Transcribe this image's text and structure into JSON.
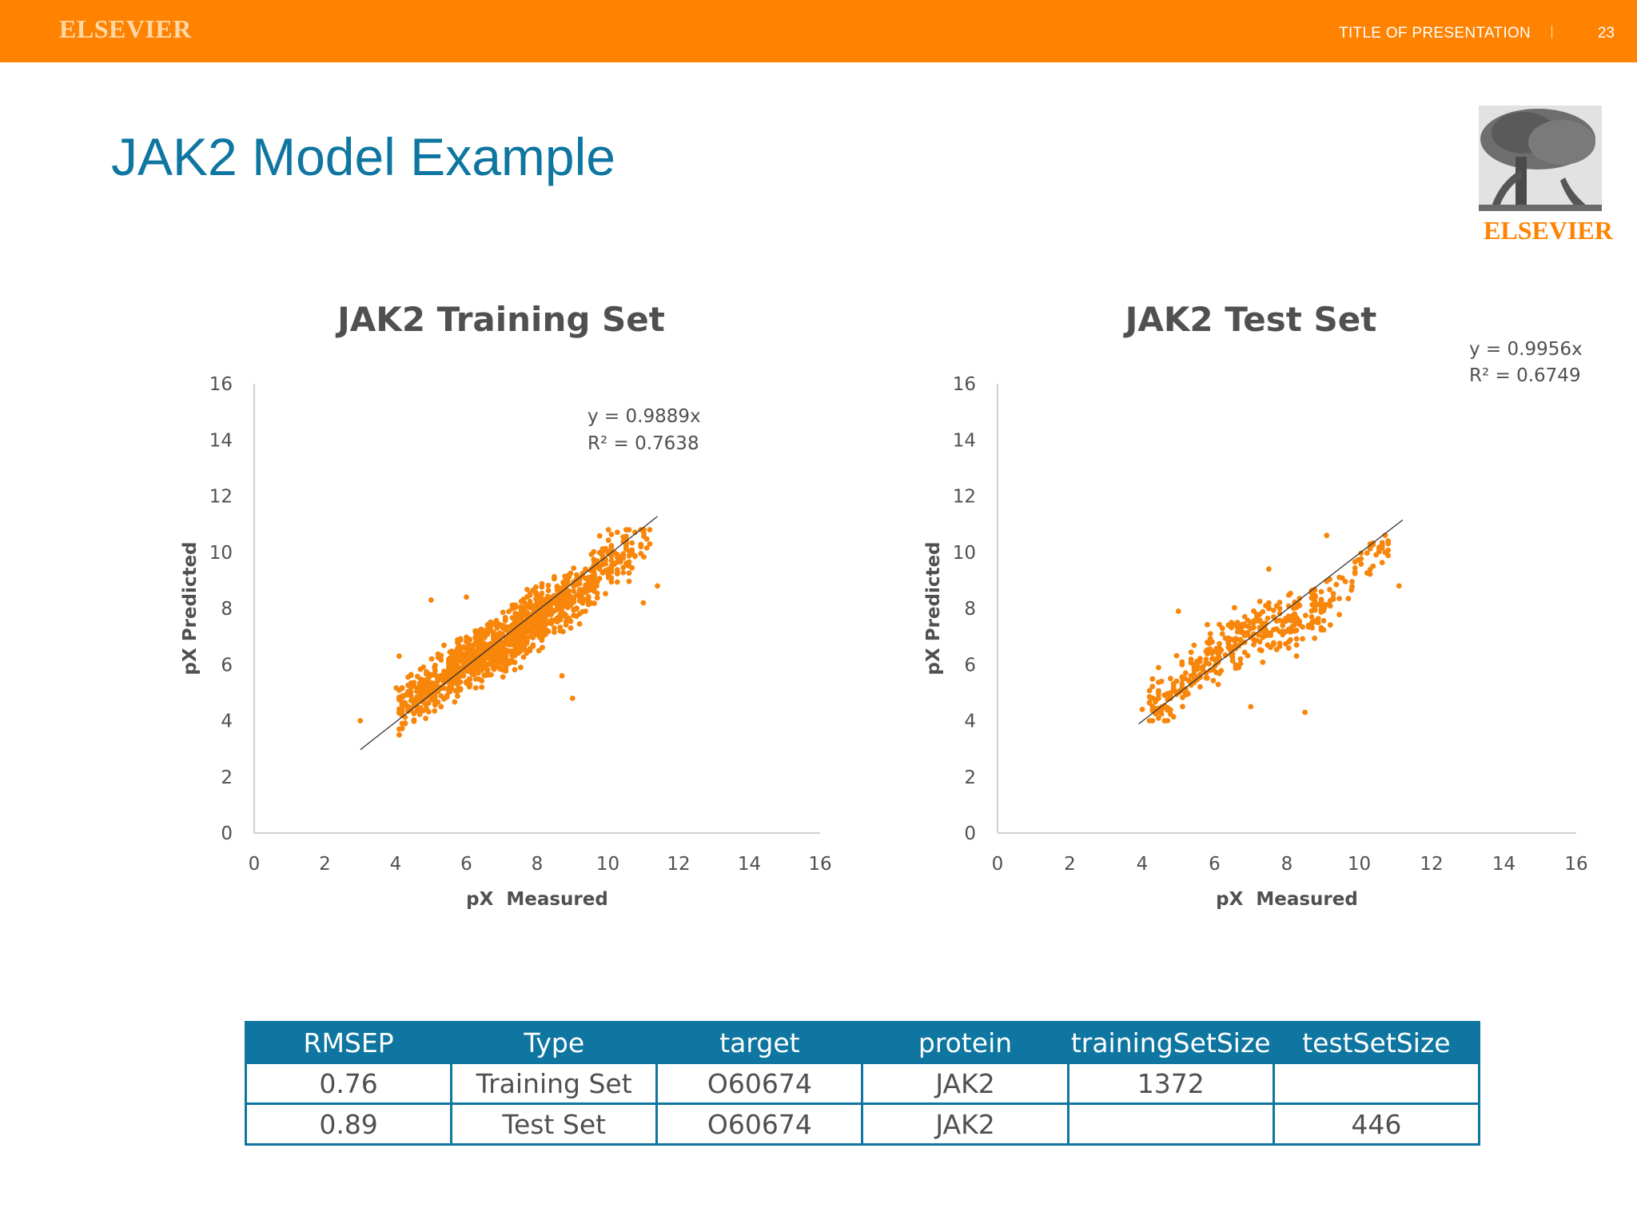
{
  "header": {
    "brand": "ELSEVIER",
    "presentation_title": "TITLE OF PRESENTATION",
    "page_number": "23"
  },
  "slide_title": "JAK2 Model Example",
  "logo": {
    "icon": "elsevier-tree-logo",
    "text": "ELSEVIER"
  },
  "colors": {
    "brand_orange": "#ff8200",
    "title_blue": "#0e76a0",
    "point": "#f7860a",
    "text_gray": "#505050"
  },
  "chart_data": [
    {
      "type": "scatter",
      "title": "JAK2 Training Set",
      "xlabel": "pX  Measured",
      "ylabel": "pX Predicted",
      "xlim": [
        0,
        16
      ],
      "ylim": [
        0,
        16
      ],
      "xticks": [
        0,
        2,
        4,
        6,
        8,
        10,
        12,
        14,
        16
      ],
      "yticks": [
        0,
        2,
        4,
        6,
        8,
        10,
        12,
        14,
        16
      ],
      "grid": false,
      "legend": "none",
      "n_points": 1372,
      "trendline": {
        "slope": 0.9889,
        "intercept": 0,
        "x_range": [
          3.0,
          11.4
        ],
        "equation": "y = 0.9889x",
        "r2": "R² = 0.7638"
      },
      "point_cloud": {
        "color": "#f7860a",
        "x_range": [
          3.0,
          11.5
        ],
        "y_range": [
          3.5,
          10.8
        ],
        "clusters": [
          {
            "x": 4.6,
            "y": 4.8,
            "n": 130
          },
          {
            "x": 5.2,
            "y": 5.4,
            "n": 90
          },
          {
            "x": 6.0,
            "y": 6.2,
            "n": 190
          },
          {
            "x": 6.6,
            "y": 6.5,
            "n": 170
          },
          {
            "x": 7.2,
            "y": 6.8,
            "n": 180
          },
          {
            "x": 7.8,
            "y": 7.5,
            "n": 180
          },
          {
            "x": 8.4,
            "y": 8.0,
            "n": 150
          },
          {
            "x": 9.2,
            "y": 8.6,
            "n": 120
          },
          {
            "x": 10.1,
            "y": 9.8,
            "n": 90
          },
          {
            "x": 10.6,
            "y": 10.1,
            "n": 40
          }
        ],
        "outliers": [
          {
            "x": 3.0,
            "y": 4.0
          },
          {
            "x": 4.1,
            "y": 6.3
          },
          {
            "x": 9.0,
            "y": 4.8
          },
          {
            "x": 11.4,
            "y": 8.8
          },
          {
            "x": 11.0,
            "y": 8.2
          },
          {
            "x": 8.7,
            "y": 5.6
          },
          {
            "x": 5.0,
            "y": 8.3
          },
          {
            "x": 6.0,
            "y": 8.4
          }
        ]
      }
    },
    {
      "type": "scatter",
      "title": "JAK2 Test Set",
      "xlabel": "pX  Measured",
      "ylabel": "pX Predicted",
      "xlim": [
        0,
        16
      ],
      "ylim": [
        0,
        16
      ],
      "xticks": [
        0,
        2,
        4,
        6,
        8,
        10,
        12,
        14,
        16
      ],
      "yticks": [
        0,
        2,
        4,
        6,
        8,
        10,
        12,
        14,
        16
      ],
      "grid": false,
      "legend": "none",
      "n_points": 446,
      "trendline": {
        "slope": 0.9956,
        "intercept": 0,
        "x_range": [
          3.9,
          11.2
        ],
        "equation": "y = 0.9956x",
        "r2": "R² = 0.6749"
      },
      "point_cloud": {
        "color": "#f7860a",
        "x_range": [
          3.9,
          11.2
        ],
        "y_range": [
          4.0,
          10.6
        ],
        "clusters": [
          {
            "x": 4.7,
            "y": 5.0,
            "n": 70
          },
          {
            "x": 5.6,
            "y": 6.0,
            "n": 60
          },
          {
            "x": 6.3,
            "y": 6.6,
            "n": 60
          },
          {
            "x": 7.0,
            "y": 7.0,
            "n": 70
          },
          {
            "x": 7.8,
            "y": 7.4,
            "n": 60
          },
          {
            "x": 8.6,
            "y": 7.8,
            "n": 55
          },
          {
            "x": 9.2,
            "y": 8.3,
            "n": 35
          },
          {
            "x": 10.3,
            "y": 9.9,
            "n": 36
          }
        ],
        "outliers": [
          {
            "x": 4.0,
            "y": 4.4
          },
          {
            "x": 8.5,
            "y": 4.3
          },
          {
            "x": 7.0,
            "y": 4.5
          },
          {
            "x": 11.1,
            "y": 8.8
          },
          {
            "x": 9.1,
            "y": 10.6
          },
          {
            "x": 5.0,
            "y": 7.9
          },
          {
            "x": 7.5,
            "y": 9.4
          },
          {
            "x": 10.8,
            "y": 10.4
          }
        ]
      }
    }
  ],
  "table": {
    "headers": [
      "RMSEP",
      "Type",
      "target",
      "protein",
      "trainingSetSize",
      "testSetSize"
    ],
    "rows": [
      [
        "0.76",
        "Training Set",
        "O60674",
        "JAK2",
        "1372",
        ""
      ],
      [
        "0.89",
        "Test Set",
        "O60674",
        "JAK2",
        "",
        "446"
      ]
    ]
  }
}
